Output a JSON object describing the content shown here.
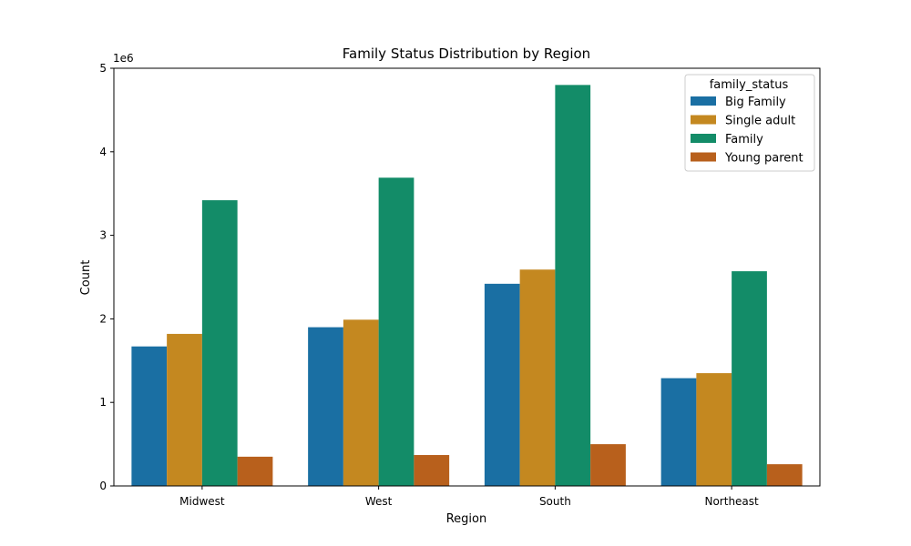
{
  "chart_data": {
    "type": "bar",
    "title": "Family Status Distribution by Region",
    "xlabel": "Region",
    "ylabel": "Count",
    "y_offset_label": "1e6",
    "y_tick_labels": [
      "0",
      "1",
      "2",
      "3",
      "4",
      "5"
    ],
    "categories": [
      "Midwest",
      "West",
      "South",
      "Northeast"
    ],
    "ylim": [
      0,
      5000000
    ],
    "y_ticks": [
      0,
      1000000,
      2000000,
      3000000,
      4000000,
      5000000
    ],
    "grid": false,
    "legend": {
      "title": "family_status",
      "placement": "top-right"
    },
    "series": [
      {
        "name": "Big Family",
        "color": "#1a6fa3",
        "values": [
          1670000,
          1900000,
          2420000,
          1290000
        ]
      },
      {
        "name": "Single adult",
        "color": "#c48820",
        "values": [
          1820000,
          1990000,
          2590000,
          1350000
        ]
      },
      {
        "name": "Family",
        "color": "#138c68",
        "values": [
          3420000,
          3690000,
          4800000,
          2570000
        ]
      },
      {
        "name": "Young parent",
        "color": "#b8601c",
        "values": [
          350000,
          370000,
          500000,
          260000
        ]
      }
    ]
  }
}
